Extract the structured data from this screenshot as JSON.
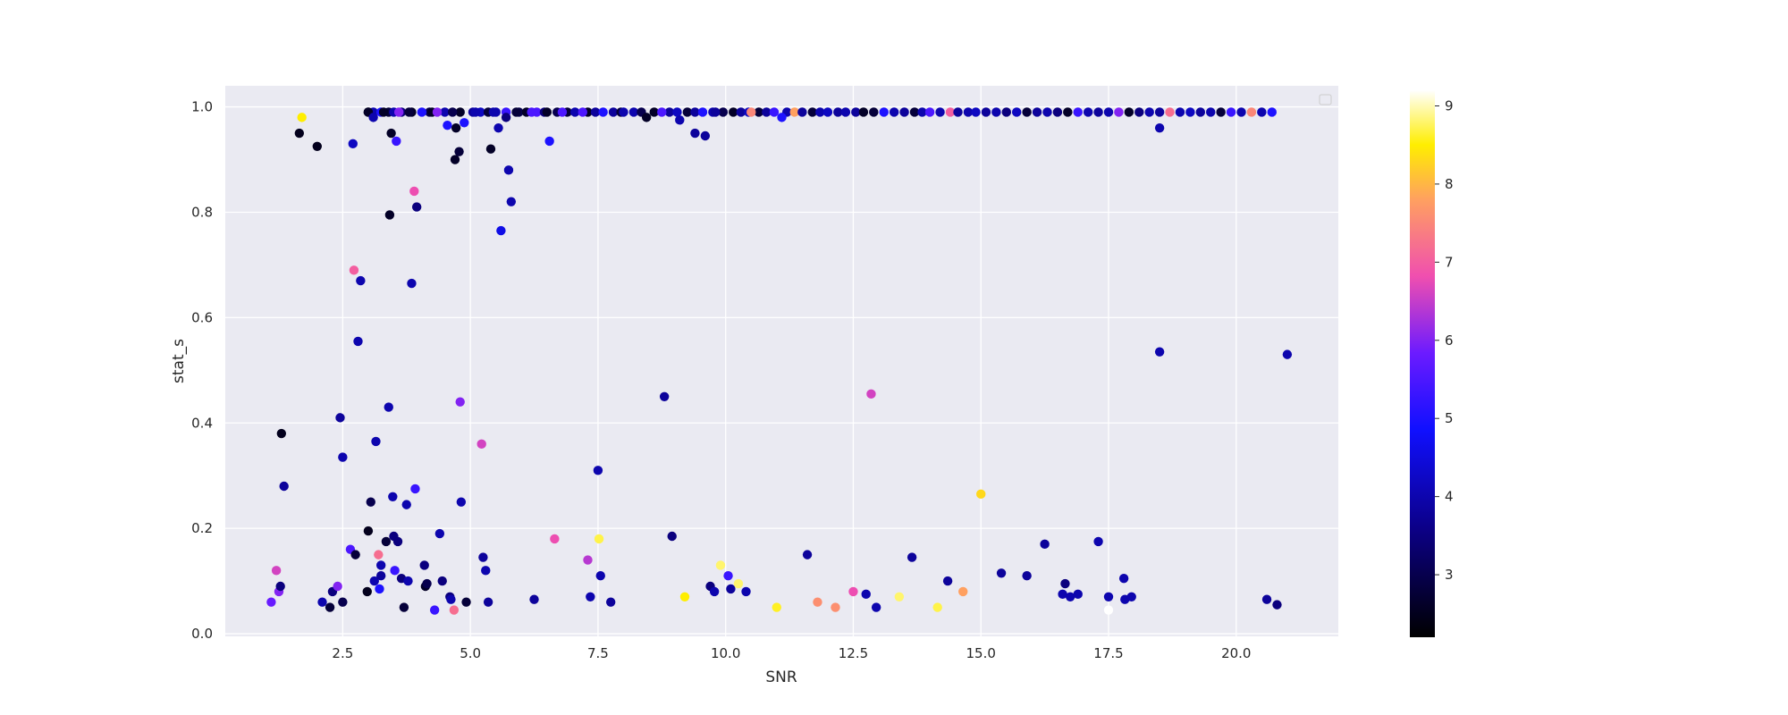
{
  "chart_data": {
    "type": "scatter",
    "xlabel": "SNR",
    "ylabel": "stat_s",
    "xlim": [
      0.2,
      22
    ],
    "ylim": [
      -0.005,
      1.04
    ],
    "x_ticks": [
      2.5,
      5.0,
      7.5,
      10.0,
      12.5,
      15.0,
      17.5,
      20.0
    ],
    "x_tick_labels": [
      "2.5",
      "5.0",
      "7.5",
      "10.0",
      "12.5",
      "15.0",
      "17.5",
      "20.0"
    ],
    "y_ticks": [
      0.0,
      0.2,
      0.4,
      0.6,
      0.8,
      1.0
    ],
    "y_tick_labels": [
      "0.0",
      "0.2",
      "0.4",
      "0.6",
      "0.8",
      "1.0"
    ],
    "grid": true,
    "legend": "top-right (empty)",
    "colorbar": {
      "colormap": "gnuplot2",
      "range": [
        2.2,
        9.2
      ],
      "ticks": [
        3,
        4,
        5,
        6,
        7,
        8,
        9
      ],
      "tick_labels": [
        "3",
        "4",
        "5",
        "6",
        "7",
        "8",
        "9"
      ]
    },
    "colors": {
      "plot_background": "#eaeaf2",
      "grid": "#ffffff",
      "text": "#262626"
    },
    "points": [
      [
        1.1,
        0.06,
        5.8
      ],
      [
        1.2,
        0.12,
        6.6
      ],
      [
        1.25,
        0.08,
        6.0
      ],
      [
        1.28,
        0.09,
        3.5
      ],
      [
        1.3,
        0.38,
        2.5
      ],
      [
        1.35,
        0.28,
        3.8
      ],
      [
        1.65,
        0.95,
        2.5
      ],
      [
        1.7,
        0.98,
        8.5
      ],
      [
        2.0,
        0.925,
        2.5
      ],
      [
        2.1,
        0.06,
        4.0
      ],
      [
        2.25,
        0.05,
        2.8
      ],
      [
        2.3,
        0.08,
        3.5
      ],
      [
        2.4,
        0.09,
        6.0
      ],
      [
        2.45,
        0.41,
        3.8
      ],
      [
        2.5,
        0.335,
        4.0
      ],
      [
        2.5,
        0.06,
        3.0
      ],
      [
        2.65,
        0.16,
        5.5
      ],
      [
        2.7,
        0.93,
        4.2
      ],
      [
        2.72,
        0.69,
        7.0
      ],
      [
        2.75,
        0.15,
        2.8
      ],
      [
        2.8,
        0.555,
        4.0
      ],
      [
        2.85,
        0.67,
        4.0
      ],
      [
        2.98,
        0.08,
        2.5
      ],
      [
        3.0,
        0.195,
        2.5
      ],
      [
        3.0,
        0.99,
        2.6
      ],
      [
        3.05,
        0.25,
        3.0
      ],
      [
        3.1,
        0.98,
        4.0
      ],
      [
        3.12,
        0.1,
        4.0
      ],
      [
        3.15,
        0.365,
        4.0
      ],
      [
        3.2,
        0.15,
        7.2
      ],
      [
        3.22,
        0.085,
        5.0
      ],
      [
        3.25,
        0.11,
        3.8
      ],
      [
        3.25,
        0.13,
        4.0
      ],
      [
        3.3,
        0.99,
        2.6
      ],
      [
        3.35,
        0.175,
        2.8
      ],
      [
        3.4,
        0.43,
        4.0
      ],
      [
        3.42,
        0.795,
        2.6
      ],
      [
        3.45,
        0.95,
        2.6
      ],
      [
        3.48,
        0.26,
        4.0
      ],
      [
        3.5,
        0.185,
        3.5
      ],
      [
        3.52,
        0.12,
        5.3
      ],
      [
        3.55,
        0.935,
        5.3
      ],
      [
        3.58,
        0.175,
        3.5
      ],
      [
        3.6,
        0.99,
        6.0
      ],
      [
        3.65,
        0.105,
        3.5
      ],
      [
        3.7,
        0.05,
        2.8
      ],
      [
        3.75,
        0.245,
        4.0
      ],
      [
        3.78,
        0.1,
        4.0
      ],
      [
        3.8,
        0.99,
        2.8
      ],
      [
        3.85,
        0.665,
        4.0
      ],
      [
        3.9,
        0.84,
        6.8
      ],
      [
        3.92,
        0.275,
        5.3
      ],
      [
        3.95,
        0.81,
        3.5
      ],
      [
        4.05,
        0.99,
        5.0
      ],
      [
        4.1,
        0.13,
        3.5
      ],
      [
        4.12,
        0.09,
        2.6
      ],
      [
        4.15,
        0.095,
        3.0
      ],
      [
        4.25,
        0.99,
        2.6
      ],
      [
        4.3,
        0.045,
        5.3
      ],
      [
        4.35,
        0.99,
        6.0
      ],
      [
        4.4,
        0.19,
        4.0
      ],
      [
        4.45,
        0.1,
        3.5
      ],
      [
        4.55,
        0.965,
        5.0
      ],
      [
        4.6,
        0.07,
        3.5
      ],
      [
        4.62,
        0.065,
        4.0
      ],
      [
        4.65,
        0.99,
        3.0
      ],
      [
        4.68,
        0.045,
        7.2
      ],
      [
        4.7,
        0.9,
        2.6
      ],
      [
        4.72,
        0.96,
        2.6
      ],
      [
        4.78,
        0.915,
        2.8
      ],
      [
        4.8,
        0.44,
        6.0
      ],
      [
        4.82,
        0.25,
        4.0
      ],
      [
        4.88,
        0.97,
        5.0
      ],
      [
        4.92,
        0.06,
        2.8
      ],
      [
        5.1,
        0.99,
        4.0
      ],
      [
        5.22,
        0.36,
        6.6
      ],
      [
        5.25,
        0.145,
        3.8
      ],
      [
        5.3,
        0.12,
        4.0
      ],
      [
        5.35,
        0.06,
        3.8
      ],
      [
        5.4,
        0.92,
        2.6
      ],
      [
        5.45,
        0.99,
        4.0
      ],
      [
        5.55,
        0.96,
        4.0
      ],
      [
        5.6,
        0.765,
        4.6
      ],
      [
        5.7,
        0.98,
        3.5
      ],
      [
        5.75,
        0.88,
        4.0
      ],
      [
        5.8,
        0.82,
        4.0
      ],
      [
        5.9,
        0.99,
        2.8
      ],
      [
        6.2,
        0.99,
        5.5
      ],
      [
        6.25,
        0.065,
        3.8
      ],
      [
        6.5,
        0.99,
        2.6
      ],
      [
        6.55,
        0.935,
        5.0
      ],
      [
        6.65,
        0.18,
        6.8
      ],
      [
        6.8,
        0.99,
        5.5
      ],
      [
        7.2,
        0.99,
        5.5
      ],
      [
        7.3,
        0.14,
        6.4
      ],
      [
        7.35,
        0.07,
        4.0
      ],
      [
        7.5,
        0.31,
        4.0
      ],
      [
        7.52,
        0.18,
        8.7
      ],
      [
        7.55,
        0.11,
        4.0
      ],
      [
        7.75,
        0.06,
        3.8
      ],
      [
        8.0,
        0.99,
        4.0
      ],
      [
        8.45,
        0.98,
        2.6
      ],
      [
        8.75,
        0.99,
        5.5
      ],
      [
        8.8,
        0.45,
        3.8
      ],
      [
        8.95,
        0.185,
        3.5
      ],
      [
        9.1,
        0.975,
        4.0
      ],
      [
        9.2,
        0.07,
        8.5
      ],
      [
        9.4,
        0.95,
        3.8
      ],
      [
        9.6,
        0.945,
        3.8
      ],
      [
        9.7,
        0.09,
        3.5
      ],
      [
        9.78,
        0.08,
        4.0
      ],
      [
        9.8,
        0.99,
        3.8
      ],
      [
        9.9,
        0.13,
        8.8
      ],
      [
        10.05,
        0.11,
        5.3
      ],
      [
        10.1,
        0.085,
        3.8
      ],
      [
        10.25,
        0.095,
        8.8
      ],
      [
        10.4,
        0.08,
        4.0
      ],
      [
        10.5,
        0.99,
        7.5
      ],
      [
        11.0,
        0.05,
        8.6
      ],
      [
        11.1,
        0.98,
        5.0
      ],
      [
        11.6,
        0.15,
        3.8
      ],
      [
        11.8,
        0.06,
        7.6
      ],
      [
        12.15,
        0.05,
        7.6
      ],
      [
        12.5,
        0.08,
        6.8
      ],
      [
        12.75,
        0.075,
        4.0
      ],
      [
        12.85,
        0.455,
        6.6
      ],
      [
        12.95,
        0.05,
        4.0
      ],
      [
        13.4,
        0.07,
        8.8
      ],
      [
        13.65,
        0.145,
        3.8
      ],
      [
        14.15,
        0.05,
        8.7
      ],
      [
        14.35,
        0.1,
        3.8
      ],
      [
        14.65,
        0.08,
        7.8
      ],
      [
        15.0,
        0.265,
        8.3
      ],
      [
        15.4,
        0.115,
        3.8
      ],
      [
        15.9,
        0.11,
        3.8
      ],
      [
        16.25,
        0.17,
        3.8
      ],
      [
        16.6,
        0.075,
        4.0
      ],
      [
        16.65,
        0.095,
        3.5
      ],
      [
        16.75,
        0.07,
        4.0
      ],
      [
        16.9,
        0.075,
        4.0
      ],
      [
        17.3,
        0.175,
        4.0
      ],
      [
        17.5,
        0.07,
        4.0
      ],
      [
        17.5,
        0.045,
        9.2
      ],
      [
        17.8,
        0.105,
        4.0
      ],
      [
        17.82,
        0.065,
        4.0
      ],
      [
        17.95,
        0.07,
        4.0
      ],
      [
        18.5,
        0.96,
        4.0
      ],
      [
        18.5,
        0.535,
        4.0
      ],
      [
        20.6,
        0.065,
        3.8
      ],
      [
        20.8,
        0.055,
        3.5
      ],
      [
        21.0,
        0.53,
        4.0
      ]
    ],
    "top_cluster_points": [
      [
        3.0,
        2.6
      ],
      [
        3.1,
        4.0
      ],
      [
        3.25,
        5.0
      ],
      [
        3.4,
        2.8
      ],
      [
        3.5,
        4.0
      ],
      [
        3.65,
        3.5
      ],
      [
        3.85,
        2.6
      ],
      [
        4.2,
        3.0
      ],
      [
        4.5,
        4.0
      ],
      [
        4.8,
        2.6
      ],
      [
        5.05,
        3.8
      ],
      [
        5.2,
        4.2
      ],
      [
        5.35,
        2.8
      ],
      [
        5.5,
        4.0
      ],
      [
        5.7,
        5.3
      ],
      [
        5.95,
        3.0
      ],
      [
        6.1,
        2.6
      ],
      [
        6.3,
        5.5
      ],
      [
        6.45,
        3.5
      ],
      [
        6.7,
        3.0
      ],
      [
        6.9,
        2.8
      ],
      [
        7.05,
        4.0
      ],
      [
        7.3,
        2.6
      ],
      [
        7.45,
        3.8
      ],
      [
        7.6,
        5.0
      ],
      [
        7.8,
        3.8
      ],
      [
        7.95,
        2.8
      ],
      [
        8.2,
        4.0
      ],
      [
        8.35,
        3.0
      ],
      [
        8.6,
        2.6
      ],
      [
        8.9,
        3.8
      ],
      [
        9.05,
        4.2
      ],
      [
        9.25,
        2.8
      ],
      [
        9.4,
        3.8
      ],
      [
        9.55,
        5.0
      ],
      [
        9.75,
        4.0
      ],
      [
        9.95,
        3.0
      ],
      [
        10.15,
        2.6
      ],
      [
        10.3,
        3.8
      ],
      [
        10.45,
        4.2
      ],
      [
        10.65,
        2.8
      ],
      [
        10.8,
        3.8
      ],
      [
        10.95,
        5.3
      ],
      [
        11.2,
        4.0
      ],
      [
        11.35,
        7.8
      ],
      [
        11.5,
        3.8
      ],
      [
        11.7,
        2.8
      ],
      [
        11.85,
        4.0
      ],
      [
        12.0,
        4.2
      ],
      [
        12.2,
        3.8
      ],
      [
        12.35,
        4.0
      ],
      [
        12.55,
        3.8
      ],
      [
        12.7,
        2.6
      ],
      [
        12.9,
        2.8
      ],
      [
        13.1,
        5.0
      ],
      [
        13.3,
        4.0
      ],
      [
        13.5,
        3.8
      ],
      [
        13.7,
        2.8
      ],
      [
        13.85,
        4.0
      ],
      [
        14.0,
        5.5
      ],
      [
        14.2,
        4.0
      ],
      [
        14.4,
        7.0
      ],
      [
        14.55,
        3.8
      ],
      [
        14.75,
        4.0
      ],
      [
        14.9,
        4.2
      ],
      [
        15.1,
        3.8
      ],
      [
        15.3,
        4.0
      ],
      [
        15.5,
        3.5
      ],
      [
        15.7,
        4.2
      ],
      [
        15.9,
        2.8
      ],
      [
        16.1,
        3.8
      ],
      [
        16.3,
        4.0
      ],
      [
        16.5,
        3.5
      ],
      [
        16.7,
        2.6
      ],
      [
        16.9,
        5.3
      ],
      [
        17.1,
        4.0
      ],
      [
        17.3,
        3.8
      ],
      [
        17.5,
        4.0
      ],
      [
        17.7,
        6.0
      ],
      [
        17.9,
        2.6
      ],
      [
        18.1,
        3.5
      ],
      [
        18.3,
        4.0
      ],
      [
        18.5,
        3.8
      ],
      [
        18.7,
        7.2
      ],
      [
        18.9,
        4.0
      ],
      [
        19.1,
        4.2
      ],
      [
        19.3,
        3.8
      ],
      [
        19.5,
        4.0
      ],
      [
        19.7,
        2.8
      ],
      [
        19.9,
        5.3
      ],
      [
        20.1,
        4.0
      ],
      [
        20.3,
        7.5
      ],
      [
        20.5,
        4.0
      ],
      [
        20.7,
        5.0
      ]
    ]
  }
}
